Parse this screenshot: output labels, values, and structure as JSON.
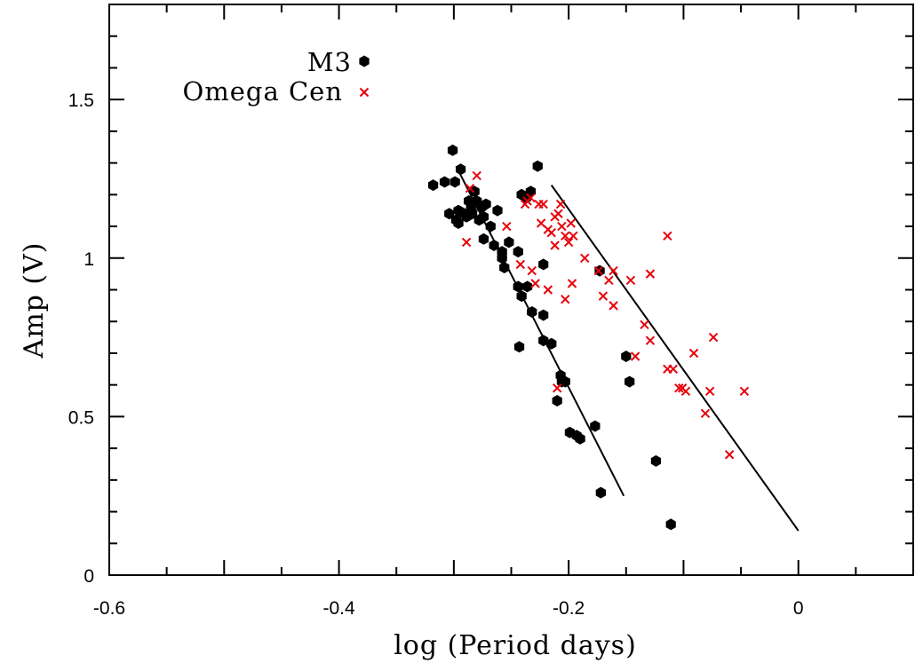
{
  "chart_data": {
    "type": "scatter",
    "xlabel": "log (Period days)",
    "ylabel": "Amp (V)",
    "xlim": [
      -0.6,
      0.1
    ],
    "ylim": [
      0,
      1.8
    ],
    "x_ticks": [
      {
        "value": -0.6,
        "label": "-0.6"
      },
      {
        "value": -0.4,
        "label": "-0.4"
      },
      {
        "value": -0.2,
        "label": "-0.2"
      },
      {
        "value": 0,
        "label": "0"
      }
    ],
    "y_ticks": [
      {
        "value": 0,
        "label": "0"
      },
      {
        "value": 0.5,
        "label": "0.5"
      },
      {
        "value": 1.0,
        "label": "1"
      },
      {
        "value": 1.5,
        "label": "1.5"
      }
    ],
    "legend": {
      "position": "top-left"
    },
    "series": [
      {
        "name": "M3",
        "marker": "hexagon",
        "color": "#000000",
        "points": [
          [
            -0.318,
            1.23
          ],
          [
            -0.308,
            1.24
          ],
          [
            -0.299,
            1.24
          ],
          [
            -0.301,
            1.34
          ],
          [
            -0.294,
            1.28
          ],
          [
            -0.304,
            1.14
          ],
          [
            -0.298,
            1.12
          ],
          [
            -0.296,
            1.11
          ],
          [
            -0.291,
            1.14
          ],
          [
            -0.287,
            1.18
          ],
          [
            -0.284,
            1.14
          ],
          [
            -0.282,
            1.21
          ],
          [
            -0.28,
            1.18
          ],
          [
            -0.278,
            1.12
          ],
          [
            -0.276,
            1.16
          ],
          [
            -0.274,
            1.13
          ],
          [
            -0.272,
            1.17
          ],
          [
            -0.268,
            1.1
          ],
          [
            -0.265,
            1.04
          ],
          [
            -0.262,
            1.15
          ],
          [
            -0.258,
            1.0
          ],
          [
            -0.256,
            0.97
          ],
          [
            -0.252,
            1.05
          ],
          [
            -0.274,
            1.06
          ],
          [
            -0.285,
            1.16
          ],
          [
            -0.296,
            1.15
          ],
          [
            -0.289,
            1.13
          ],
          [
            -0.244,
            1.02
          ],
          [
            -0.241,
            1.2
          ],
          [
            -0.237,
            1.19
          ],
          [
            -0.233,
            1.21
          ],
          [
            -0.227,
            1.29
          ],
          [
            -0.222,
            0.98
          ],
          [
            -0.244,
            0.91
          ],
          [
            -0.241,
            0.88
          ],
          [
            -0.236,
            0.91
          ],
          [
            -0.232,
            0.83
          ],
          [
            -0.222,
            0.82
          ],
          [
            -0.243,
            0.72
          ],
          [
            -0.222,
            0.74
          ],
          [
            -0.215,
            0.73
          ],
          [
            -0.21,
            0.55
          ],
          [
            -0.207,
            0.63
          ],
          [
            -0.203,
            0.61
          ],
          [
            -0.199,
            0.45
          ],
          [
            -0.193,
            0.44
          ],
          [
            -0.19,
            0.43
          ],
          [
            -0.177,
            0.47
          ],
          [
            -0.172,
            0.26
          ],
          [
            -0.173,
            0.96
          ],
          [
            -0.15,
            0.69
          ],
          [
            -0.147,
            0.61
          ],
          [
            -0.124,
            0.36
          ],
          [
            -0.111,
            0.16
          ],
          [
            -0.258,
            1.02
          ],
          [
            -0.206,
            0.61
          ]
        ]
      },
      {
        "name": "Omega Cen",
        "marker": "x",
        "color": "#e8000b",
        "points": [
          [
            -0.286,
            1.22
          ],
          [
            -0.28,
            1.26
          ],
          [
            -0.289,
            1.05
          ],
          [
            -0.254,
            1.1
          ],
          [
            -0.242,
            0.98
          ],
          [
            -0.238,
            1.17
          ],
          [
            -0.236,
            1.18
          ],
          [
            -0.233,
            1.19
          ],
          [
            -0.226,
            1.17
          ],
          [
            -0.222,
            1.17
          ],
          [
            -0.224,
            1.11
          ],
          [
            -0.218,
            1.09
          ],
          [
            -0.215,
            1.08
          ],
          [
            -0.212,
            1.13
          ],
          [
            -0.209,
            1.14
          ],
          [
            -0.207,
            1.17
          ],
          [
            -0.206,
            1.1
          ],
          [
            -0.203,
            1.07
          ],
          [
            -0.2,
            1.05
          ],
          [
            -0.196,
            1.07
          ],
          [
            -0.198,
            1.11
          ],
          [
            -0.212,
            1.04
          ],
          [
            -0.232,
            0.96
          ],
          [
            -0.229,
            0.92
          ],
          [
            -0.218,
            0.9
          ],
          [
            -0.203,
            0.87
          ],
          [
            -0.197,
            0.92
          ],
          [
            -0.186,
            1.0
          ],
          [
            -0.174,
            0.96
          ],
          [
            -0.17,
            0.88
          ],
          [
            -0.165,
            0.93
          ],
          [
            -0.161,
            0.85
          ],
          [
            -0.161,
            0.96
          ],
          [
            -0.146,
            0.93
          ],
          [
            -0.142,
            0.69
          ],
          [
            -0.134,
            0.79
          ],
          [
            -0.129,
            0.74
          ],
          [
            -0.129,
            0.95
          ],
          [
            -0.114,
            1.07
          ],
          [
            -0.114,
            0.65
          ],
          [
            -0.109,
            0.65
          ],
          [
            -0.104,
            0.59
          ],
          [
            -0.101,
            0.59
          ],
          [
            -0.098,
            0.58
          ],
          [
            -0.091,
            0.7
          ],
          [
            -0.081,
            0.51
          ],
          [
            -0.077,
            0.58
          ],
          [
            -0.074,
            0.75
          ],
          [
            -0.06,
            0.38
          ],
          [
            -0.047,
            0.58
          ],
          [
            -0.21,
            0.59
          ]
        ]
      }
    ],
    "fit_lines": [
      {
        "series": "M3",
        "x": [
          -0.298,
          -0.152
        ],
        "y": [
          1.29,
          0.25
        ]
      },
      {
        "series": "Omega Cen",
        "x": [
          -0.215,
          0.0
        ],
        "y": [
          1.23,
          0.14
        ]
      }
    ]
  }
}
